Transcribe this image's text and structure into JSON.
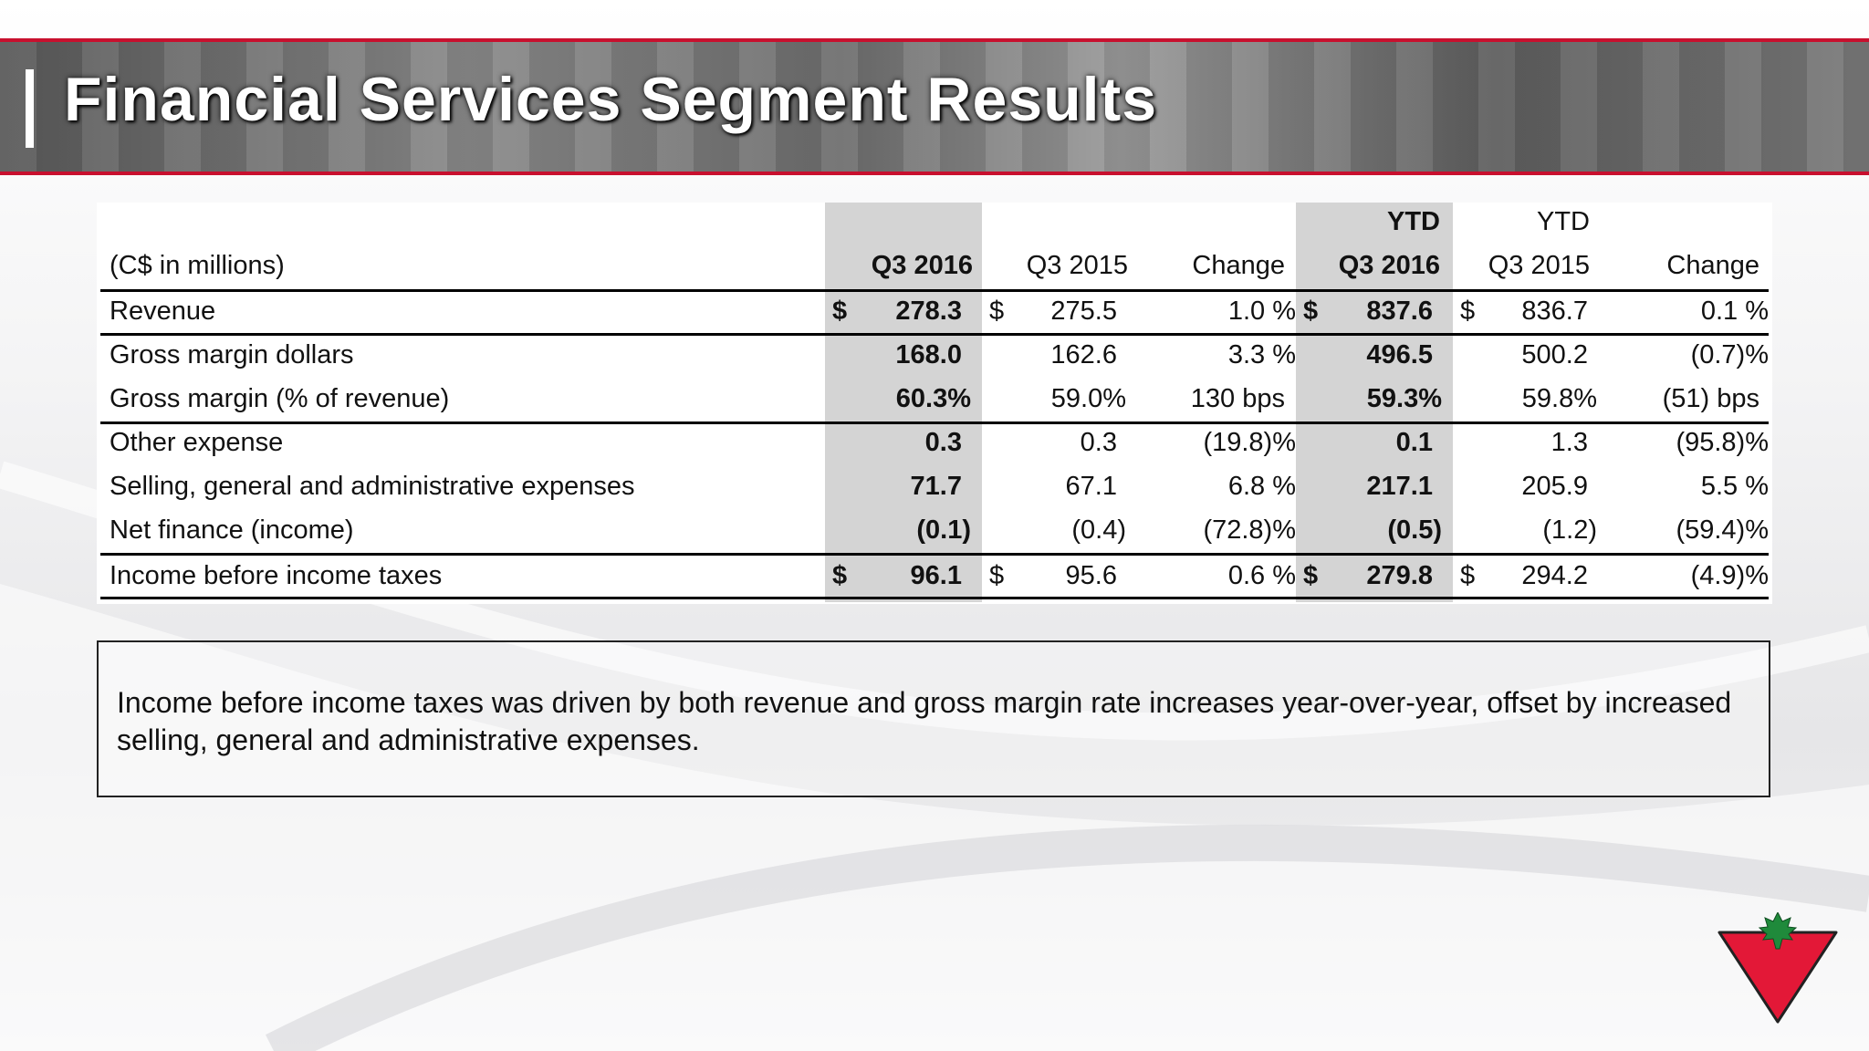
{
  "header": {
    "title": "Financial Services Segment Results"
  },
  "table": {
    "group_headers": {
      "ytd_current": "YTD",
      "ytd_prior": "YTD"
    },
    "columns": [
      "(C$ in millions)",
      "Q3 2016",
      "Q3 2015",
      "Change",
      "Q3 2016",
      "Q3 2015",
      "Change"
    ],
    "rows": [
      {
        "label": "Revenue",
        "c1_cur": "$",
        "q3_2016": "278.3",
        "c2_cur": "$",
        "q3_2015": "275.5",
        "chg": "1.0 %",
        "c4_cur": "$",
        "ytd_2016": "837.6",
        "c5_cur": "$",
        "ytd_2015": "836.7",
        "ytd_chg": "0.1 %"
      },
      {
        "label": "Gross margin dollars",
        "q3_2016": "168.0",
        "q3_2015": "162.6",
        "chg": "3.3 %",
        "ytd_2016": "496.5",
        "ytd_2015": "500.2",
        "ytd_chg": "(0.7)%"
      },
      {
        "label": "Gross margin (% of revenue)",
        "q3_2016": "60.3%",
        "q3_2015": "59.0%",
        "chg": "130 bps",
        "ytd_2016": "59.3%",
        "ytd_2015": "59.8%",
        "ytd_chg": "(51) bps"
      },
      {
        "label": "Other expense",
        "q3_2016": "0.3",
        "q3_2015": "0.3",
        "chg": "(19.8)%",
        "ytd_2016": "0.1",
        "ytd_2015": "1.3",
        "ytd_chg": "(95.8)%"
      },
      {
        "label": "Selling, general and administrative expenses",
        "q3_2016": "71.7",
        "q3_2015": "67.1",
        "chg": "6.8 %",
        "ytd_2016": "217.1",
        "ytd_2015": "205.9",
        "ytd_chg": "5.5 %"
      },
      {
        "label": "Net finance (income)",
        "q3_2016": "(0.1)",
        "q3_2015": "(0.4)",
        "chg": "(72.8)%",
        "ytd_2016": "(0.5)",
        "ytd_2015": "(1.2)",
        "ytd_chg": "(59.4)%"
      },
      {
        "label": "Income before income taxes",
        "c1_cur": "$",
        "q3_2016": "96.1",
        "c2_cur": "$",
        "q3_2015": "95.6",
        "chg": "0.6 %",
        "c4_cur": "$",
        "ytd_2016": "279.8",
        "c5_cur": "$",
        "ytd_2015": "294.2",
        "ytd_chg": "(4.9)%"
      }
    ]
  },
  "note": {
    "text": "Income before income taxes was driven by both revenue and gross margin rate increases year-over-year, offset by increased selling, general and administrative expenses."
  },
  "logo": {
    "icon": "canadian-tire-triangle-icon",
    "red": "#e31837",
    "green": "#1f8a3b"
  },
  "colors": {
    "accent": "#c8102e",
    "shade": "#d4d4d4"
  }
}
